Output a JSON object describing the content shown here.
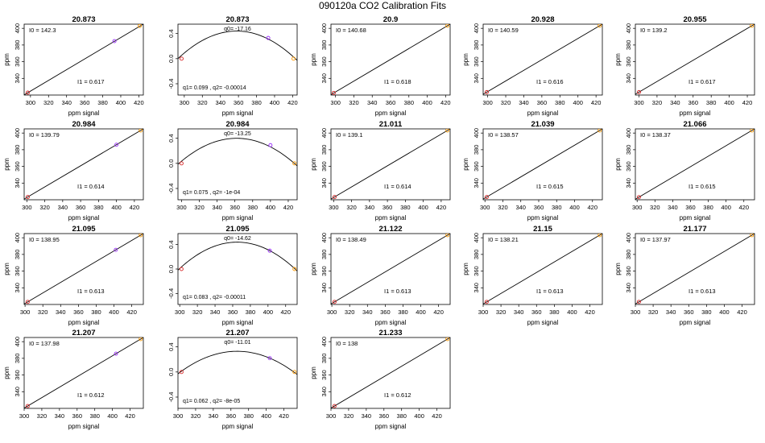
{
  "page": {
    "title": "090120a   CO2 Calibration Fits"
  },
  "colors": {
    "line": "#000000",
    "low_point": "#d62728",
    "mid_point": "#9b30ff",
    "high_point": "#ff9900"
  },
  "chart_data": [
    {
      "type": "line",
      "kind": "linear",
      "title": "20.873",
      "xlabel": "ppm signal",
      "ylabel": "ppm",
      "xlim": [
        293,
        425
      ],
      "ylim": [
        320,
        405
      ],
      "xticks": [
        300,
        320,
        340,
        360,
        380,
        400,
        420
      ],
      "yticks": [
        340,
        360,
        380,
        400
      ],
      "line": {
        "x": [
          293,
          425
        ],
        "y": [
          320.2,
          405.0
        ]
      },
      "points": [
        {
          "x": 297,
          "y": 322.9,
          "role": "low"
        },
        {
          "x": 393,
          "y": 384.7,
          "role": "mid"
        },
        {
          "x": 421,
          "y": 402.8,
          "role": "high"
        }
      ],
      "labels": [
        "I0 =  142.3",
        "I1 =  0.617"
      ]
    },
    {
      "type": "line",
      "kind": "quadratic",
      "title": "20.873",
      "xlabel": "ppm signal",
      "ylabel": "",
      "xlim": [
        293,
        425
      ],
      "ylim": [
        -0.58,
        0.55
      ],
      "xticks": [
        300,
        320,
        340,
        360,
        380,
        400,
        420
      ],
      "yticks": [
        -0.4,
        0,
        0.4
      ],
      "ytick_labels": [
        "-0.4",
        "0.0",
        "0.4"
      ],
      "curve": {
        "vertex_x": 358,
        "peak_y": 0.44,
        "a": 0.000104
      },
      "points": [
        {
          "x": 297,
          "y": 0.0,
          "role": "low"
        },
        {
          "x": 393,
          "y": 0.33,
          "role": "mid"
        },
        {
          "x": 421,
          "y": 0.0,
          "role": "high"
        }
      ],
      "labels": [
        "q0= -17.16",
        "q1= 0.099 ,  q2= -0.00014"
      ]
    },
    {
      "type": "line",
      "kind": "linear",
      "title": "20.9",
      "xlabel": "ppm signal",
      "ylabel": "ppm",
      "xlim": [
        295,
        425
      ],
      "ylim": [
        320,
        405
      ],
      "xticks": [
        300,
        320,
        340,
        360,
        380,
        400,
        420
      ],
      "yticks": [
        340,
        360,
        380,
        400
      ],
      "line": {
        "x": [
          295,
          425
        ],
        "y": [
          320.5,
          405.0
        ]
      },
      "points": [
        {
          "x": 298,
          "y": 322.5,
          "role": "low"
        },
        {
          "x": 422,
          "y": 403.1,
          "role": "high"
        }
      ],
      "labels": [
        "I0 =  140.68",
        "I1 =  0.618"
      ]
    },
    {
      "type": "line",
      "kind": "linear",
      "title": "20.928",
      "xlabel": "ppm signal",
      "ylabel": "ppm",
      "xlim": [
        295,
        427
      ],
      "ylim": [
        320,
        405
      ],
      "xticks": [
        300,
        320,
        340,
        360,
        380,
        400,
        420
      ],
      "yticks": [
        340,
        360,
        380,
        400
      ],
      "line": {
        "x": [
          295,
          427
        ],
        "y": [
          321.0,
          405.0
        ]
      },
      "points": [
        {
          "x": 299,
          "y": 323.5,
          "role": "low"
        },
        {
          "x": 424,
          "y": 403.2,
          "role": "high"
        }
      ],
      "labels": [
        "I0 =  140.59",
        "I1 =  0.616"
      ]
    },
    {
      "type": "line",
      "kind": "linear",
      "title": "20.955",
      "xlabel": "ppm signal",
      "ylabel": "ppm",
      "xlim": [
        296,
        428
      ],
      "ylim": [
        320,
        405
      ],
      "xticks": [
        300,
        320,
        340,
        360,
        380,
        400,
        420
      ],
      "yticks": [
        340,
        360,
        380,
        400
      ],
      "line": {
        "x": [
          296,
          428
        ],
        "y": [
          321.0,
          405.0
        ]
      },
      "points": [
        {
          "x": 300,
          "y": 323.5,
          "role": "low"
        },
        {
          "x": 425,
          "y": 403.2,
          "role": "high"
        }
      ],
      "labels": [
        "I0 =  139.2",
        "I1 =  0.617"
      ]
    },
    {
      "type": "line",
      "kind": "linear",
      "title": "20.984",
      "xlabel": "ppm signal",
      "ylabel": "ppm",
      "xlim": [
        297,
        430
      ],
      "ylim": [
        320,
        405
      ],
      "xticks": [
        300,
        320,
        340,
        360,
        380,
        400,
        420
      ],
      "yticks": [
        340,
        360,
        380,
        400
      ],
      "line": {
        "x": [
          297,
          430
        ],
        "y": [
          320.8,
          405.0
        ]
      },
      "points": [
        {
          "x": 301,
          "y": 323.3,
          "role": "low"
        },
        {
          "x": 400,
          "y": 386.0,
          "role": "mid"
        },
        {
          "x": 427,
          "y": 403.1,
          "role": "high"
        }
      ],
      "labels": [
        "I0 =  139.79",
        "I1 =  0.614"
      ]
    },
    {
      "type": "line",
      "kind": "quadratic",
      "title": "20.984",
      "xlabel": "ppm signal",
      "ylabel": "",
      "xlim": [
        296,
        430
      ],
      "ylim": [
        -0.58,
        0.55
      ],
      "xticks": [
        300,
        320,
        340,
        360,
        380,
        400,
        420
      ],
      "yticks": [
        -0.4,
        0,
        0.4
      ],
      "ytick_labels": [
        "-0.4",
        "0.0",
        "0.4"
      ],
      "curve": {
        "vertex_x": 362,
        "peak_y": 0.4,
        "a": 9.5e-05
      },
      "points": [
        {
          "x": 300,
          "y": 0.0,
          "role": "low"
        },
        {
          "x": 400,
          "y": 0.29,
          "role": "mid"
        },
        {
          "x": 427,
          "y": 0.0,
          "role": "high"
        }
      ],
      "labels": [
        "q0= -13.25",
        "q1= 0.075 ,  q2= -1e-04"
      ]
    },
    {
      "type": "line",
      "kind": "linear",
      "title": "21.011",
      "xlabel": "ppm signal",
      "ylabel": "ppm",
      "xlim": [
        297,
        430
      ],
      "ylim": [
        320,
        405
      ],
      "xticks": [
        300,
        320,
        340,
        360,
        380,
        400,
        420
      ],
      "yticks": [
        340,
        360,
        380,
        400
      ],
      "line": {
        "x": [
          297,
          430
        ],
        "y": [
          320.8,
          405.0
        ]
      },
      "points": [
        {
          "x": 301,
          "y": 323.3,
          "role": "low"
        },
        {
          "x": 427,
          "y": 403.1,
          "role": "high"
        }
      ],
      "labels": [
        "I0 =  139.1",
        "I1 =  0.614"
      ]
    },
    {
      "type": "line",
      "kind": "linear",
      "title": "21.039",
      "xlabel": "ppm signal",
      "ylabel": "ppm",
      "xlim": [
        298,
        431
      ],
      "ylim": [
        320,
        405
      ],
      "xticks": [
        300,
        320,
        340,
        360,
        380,
        400,
        420
      ],
      "yticks": [
        340,
        360,
        380,
        400
      ],
      "line": {
        "x": [
          298,
          431
        ],
        "y": [
          320.8,
          405.0
        ]
      },
      "points": [
        {
          "x": 302,
          "y": 323.3,
          "role": "low"
        },
        {
          "x": 428,
          "y": 403.1,
          "role": "high"
        }
      ],
      "labels": [
        "I0 =  138.57",
        "I1 =  0.615"
      ]
    },
    {
      "type": "line",
      "kind": "linear",
      "title": "21.066",
      "xlabel": "ppm signal",
      "ylabel": "ppm",
      "xlim": [
        298,
        432
      ],
      "ylim": [
        320,
        405
      ],
      "xticks": [
        300,
        320,
        340,
        360,
        380,
        400,
        420
      ],
      "yticks": [
        340,
        360,
        380,
        400
      ],
      "line": {
        "x": [
          298,
          432
        ],
        "y": [
          320.6,
          405.0
        ]
      },
      "points": [
        {
          "x": 302,
          "y": 323.1,
          "role": "low"
        },
        {
          "x": 429,
          "y": 403.1,
          "role": "high"
        }
      ],
      "labels": [
        "I0 =  138.37",
        "I1 =  0.615"
      ]
    },
    {
      "type": "line",
      "kind": "linear",
      "title": "21.095",
      "xlabel": "ppm signal",
      "ylabel": "ppm",
      "xlim": [
        299,
        433
      ],
      "ylim": [
        320,
        405
      ],
      "xticks": [
        300,
        320,
        340,
        360,
        380,
        400,
        420
      ],
      "yticks": [
        340,
        360,
        380,
        400
      ],
      "line": {
        "x": [
          299,
          433
        ],
        "y": [
          320.6,
          405.0
        ]
      },
      "points": [
        {
          "x": 303,
          "y": 323.1,
          "role": "low"
        },
        {
          "x": 402,
          "y": 385.5,
          "role": "mid"
        },
        {
          "x": 430,
          "y": 403.1,
          "role": "high"
        }
      ],
      "labels": [
        "I0 =  138.95",
        "I1 =  0.613"
      ]
    },
    {
      "type": "line",
      "kind": "quadratic",
      "title": "21.095",
      "xlabel": "ppm signal",
      "ylabel": "",
      "xlim": [
        298,
        433
      ],
      "ylim": [
        -0.58,
        0.58
      ],
      "xticks": [
        300,
        320,
        340,
        360,
        380,
        400,
        420
      ],
      "yticks": [
        -0.4,
        0,
        0.4
      ],
      "ytick_labels": [
        "-0.4",
        "0.0",
        "0.4"
      ],
      "curve": {
        "vertex_x": 365,
        "peak_y": 0.44,
        "a": 0.000102
      },
      "points": [
        {
          "x": 302,
          "y": 0.0,
          "role": "low"
        },
        {
          "x": 402,
          "y": 0.3,
          "role": "mid"
        },
        {
          "x": 430,
          "y": 0.0,
          "role": "high"
        }
      ],
      "labels": [
        "q0= -14.62",
        "q1= 0.083 ,  q2= -0.00011"
      ]
    },
    {
      "type": "line",
      "kind": "linear",
      "title": "21.122",
      "xlabel": "ppm signal",
      "ylabel": "ppm",
      "xlim": [
        299,
        433
      ],
      "ylim": [
        320,
        405
      ],
      "xticks": [
        300,
        320,
        340,
        360,
        380,
        400,
        420
      ],
      "yticks": [
        340,
        360,
        380,
        400
      ],
      "line": {
        "x": [
          299,
          433
        ],
        "y": [
          320.6,
          405.0
        ]
      },
      "points": [
        {
          "x": 303,
          "y": 323.1,
          "role": "low"
        },
        {
          "x": 430,
          "y": 403.1,
          "role": "high"
        }
      ],
      "labels": [
        "I0 =  138.49",
        "I1 =  0.613"
      ]
    },
    {
      "type": "line",
      "kind": "linear",
      "title": "21.15",
      "xlabel": "ppm signal",
      "ylabel": "ppm",
      "xlim": [
        300,
        434
      ],
      "ylim": [
        320,
        405
      ],
      "xticks": [
        300,
        320,
        340,
        360,
        380,
        400,
        420
      ],
      "yticks": [
        340,
        360,
        380,
        400
      ],
      "line": {
        "x": [
          300,
          434
        ],
        "y": [
          320.6,
          405.0
        ]
      },
      "points": [
        {
          "x": 304,
          "y": 323.1,
          "role": "low"
        },
        {
          "x": 431,
          "y": 403.1,
          "role": "high"
        }
      ],
      "labels": [
        "I0 =  138.21",
        "I1 =  0.613"
      ]
    },
    {
      "type": "line",
      "kind": "linear",
      "title": "21.177",
      "xlabel": "ppm signal",
      "ylabel": "ppm",
      "xlim": [
        300,
        434
      ],
      "ylim": [
        320,
        405
      ],
      "xticks": [
        300,
        320,
        340,
        360,
        380,
        400,
        420
      ],
      "yticks": [
        340,
        360,
        380,
        400
      ],
      "line": {
        "x": [
          300,
          434
        ],
        "y": [
          320.6,
          405.0
        ]
      },
      "points": [
        {
          "x": 304,
          "y": 323.1,
          "role": "low"
        },
        {
          "x": 431,
          "y": 403.1,
          "role": "high"
        }
      ],
      "labels": [
        "I0 =  137.97",
        "I1 =  0.613"
      ]
    },
    {
      "type": "line",
      "kind": "linear",
      "title": "21.207",
      "xlabel": "ppm signal",
      "ylabel": "ppm",
      "xlim": [
        300,
        435
      ],
      "ylim": [
        320,
        405
      ],
      "xticks": [
        300,
        320,
        340,
        360,
        380,
        400,
        420
      ],
      "yticks": [
        340,
        360,
        380,
        400
      ],
      "line": {
        "x": [
          300,
          435
        ],
        "y": [
          320.3,
          405.0
        ]
      },
      "points": [
        {
          "x": 304,
          "y": 322.8,
          "role": "low"
        },
        {
          "x": 404,
          "y": 385.6,
          "role": "mid"
        },
        {
          "x": 432,
          "y": 403.1,
          "role": "high"
        }
      ],
      "labels": [
        "I0 =  137.98",
        "I1 =  0.612"
      ]
    },
    {
      "type": "line",
      "kind": "quadratic",
      "title": "21.207",
      "xlabel": "ppm signal",
      "ylabel": "",
      "xlim": [
        300,
        435
      ],
      "ylim": [
        -0.58,
        0.55
      ],
      "xticks": [
        300,
        320,
        340,
        360,
        380,
        400,
        420
      ],
      "yticks": [
        -0.4,
        0,
        0.4
      ],
      "ytick_labels": [
        "-0.4",
        "0.0",
        "0.4"
      ],
      "curve": {
        "vertex_x": 367,
        "peak_y": 0.33,
        "a": 8e-05
      },
      "points": [
        {
          "x": 304,
          "y": 0.0,
          "role": "low"
        },
        {
          "x": 404,
          "y": 0.22,
          "role": "mid"
        },
        {
          "x": 432,
          "y": 0.0,
          "role": "high"
        }
      ],
      "labels": [
        "q0= -11.01",
        "q1= 0.062 ,  q2= -8e-05"
      ]
    },
    {
      "type": "line",
      "kind": "linear",
      "title": "21.233",
      "xlabel": "ppm signal",
      "ylabel": "ppm",
      "xlim": [
        300,
        435
      ],
      "ylim": [
        320,
        405
      ],
      "xticks": [
        300,
        320,
        340,
        360,
        380,
        400,
        420
      ],
      "yticks": [
        340,
        360,
        380,
        400
      ],
      "line": {
        "x": [
          300,
          435
        ],
        "y": [
          320.3,
          405.0
        ]
      },
      "points": [
        {
          "x": 304,
          "y": 322.8,
          "role": "low"
        },
        {
          "x": 432,
          "y": 403.1,
          "role": "high"
        }
      ],
      "labels": [
        "I0 =  138",
        "I1 =  0.612"
      ]
    }
  ]
}
